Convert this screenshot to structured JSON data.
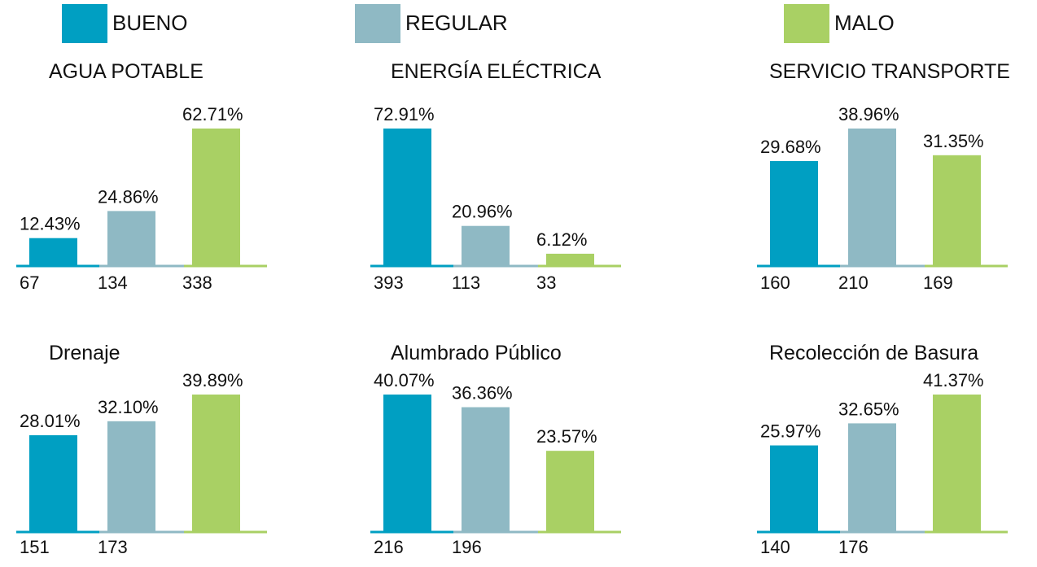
{
  "legend": [
    {
      "name": "BUENO",
      "color": "#009fc2"
    },
    {
      "name": "REGULAR",
      "color": "#8fb9c4"
    },
    {
      "name": "MALO",
      "color": "#a9d064"
    }
  ],
  "chart_data": [
    {
      "type": "bar",
      "title": "AGUA POTABLE",
      "values": [
        12.43,
        24.86,
        62.71
      ],
      "value_labels": [
        "12.43%",
        "24.86%",
        "62.71%"
      ],
      "counts": [
        67,
        134,
        338
      ]
    },
    {
      "type": "bar",
      "title": "ENERGÍA ELÉCTRICA",
      "values": [
        72.91,
        20.96,
        6.12
      ],
      "value_labels": [
        "72.91%",
        "20.96%",
        "6.12%"
      ],
      "counts": [
        393,
        113,
        33
      ]
    },
    {
      "type": "bar",
      "title": "SERVICIO TRANSPORTE",
      "values": [
        29.68,
        38.96,
        31.35
      ],
      "value_labels": [
        "29.68%",
        "38.96%",
        "31.35%"
      ],
      "counts": [
        160,
        210,
        169
      ]
    },
    {
      "type": "bar",
      "title": "Drenaje",
      "values": [
        28.01,
        32.1,
        39.89
      ],
      "value_labels": [
        "28.01%",
        "32.10%",
        "39.89%"
      ],
      "counts": [
        151,
        173,
        null
      ]
    },
    {
      "type": "bar",
      "title": "Alumbrado Público",
      "values": [
        40.07,
        36.36,
        23.57
      ],
      "value_labels": [
        "40.07%",
        "36.36%",
        "23.57%"
      ],
      "counts": [
        216,
        196,
        null
      ]
    },
    {
      "type": "bar",
      "title": "Recolección de Basura",
      "values": [
        25.97,
        32.65,
        41.37
      ],
      "value_labels": [
        "25.97%",
        "32.65%",
        "41.37%"
      ],
      "counts": [
        140,
        176,
        null
      ]
    }
  ]
}
